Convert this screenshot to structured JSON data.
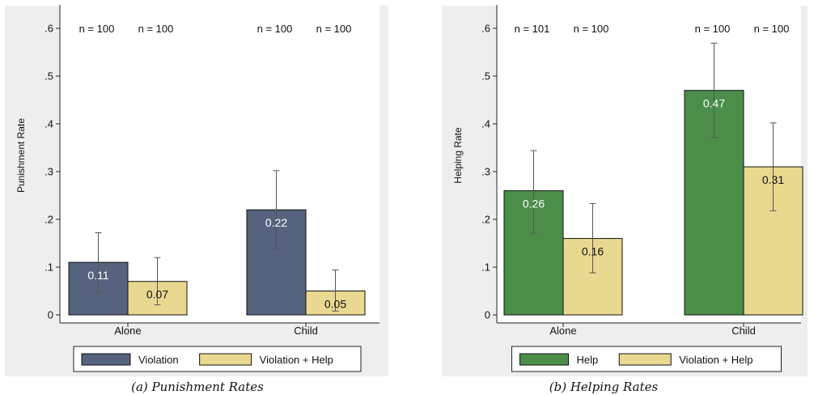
{
  "chart_data": [
    {
      "type": "bar",
      "caption": "(a) Punishment Rates",
      "ylabel": "Punishment Rate",
      "ylim": [
        0,
        0.6
      ],
      "yticks": [
        0,
        0.1,
        0.2,
        0.3,
        0.4,
        0.5,
        0.6
      ],
      "ytick_labels": [
        "0",
        ".1",
        ".2",
        ".3",
        ".4",
        ".5",
        ".6"
      ],
      "categories": [
        "Alone",
        "Child"
      ],
      "n_labels": [
        [
          "n = 100",
          "n = 100"
        ],
        [
          "n = 100",
          "n = 100"
        ]
      ],
      "legend_position": "bottom",
      "series": [
        {
          "name": "Violation",
          "color": "#56637e",
          "label_color": "#ffffff",
          "values": [
            0.11,
            0.22
          ],
          "value_labels": [
            "0.11",
            "0.22"
          ],
          "ci_low": [
            0.047,
            0.137
          ],
          "ci_high": [
            0.172,
            0.302
          ]
        },
        {
          "name": "Violation + Help",
          "color": "#e9d88f",
          "label_color": "#111111",
          "values": [
            0.07,
            0.05
          ],
          "value_labels": [
            "0.07",
            "0.05"
          ],
          "ci_low": [
            0.021,
            0.008
          ],
          "ci_high": [
            0.12,
            0.094
          ]
        }
      ]
    },
    {
      "type": "bar",
      "caption": "(b) Helping Rates",
      "ylabel": "Helping Rate",
      "ylim": [
        0,
        0.6
      ],
      "yticks": [
        0,
        0.1,
        0.2,
        0.3,
        0.4,
        0.5,
        0.6
      ],
      "ytick_labels": [
        "0",
        ".1",
        ".2",
        ".3",
        ".4",
        ".5",
        ".6"
      ],
      "categories": [
        "Alone",
        "Child"
      ],
      "n_labels": [
        [
          "n = 101",
          "n = 100"
        ],
        [
          "n = 100",
          "n = 100"
        ]
      ],
      "legend_position": "bottom",
      "series": [
        {
          "name": "Help",
          "color": "#4a8e4a",
          "label_color": "#ffffff",
          "values": [
            0.26,
            0.47
          ],
          "value_labels": [
            "0.26",
            "0.47"
          ],
          "ci_low": [
            0.171,
            0.371
          ],
          "ci_high": [
            0.344,
            0.569
          ]
        },
        {
          "name": "Violation + Help",
          "color": "#e9d88f",
          "label_color": "#111111",
          "values": [
            0.16,
            0.31
          ],
          "value_labels": [
            "0.16",
            "0.31"
          ],
          "ci_low": [
            0.088,
            0.218
          ],
          "ci_high": [
            0.233,
            0.402
          ]
        }
      ]
    }
  ]
}
